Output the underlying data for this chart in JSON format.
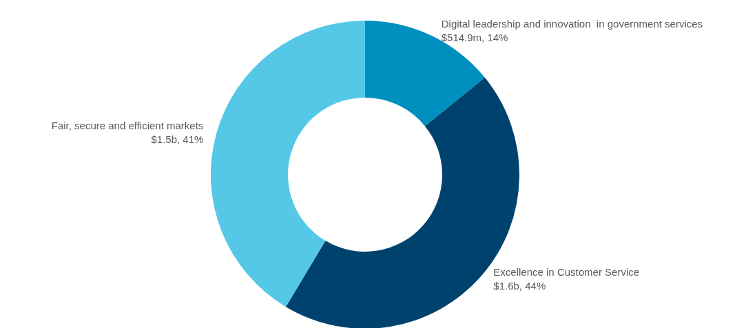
{
  "chart_data": {
    "type": "donut",
    "categories": [
      "Digital leadership and innovation  in government services",
      "Excellence in Customer Service",
      "Fair, secure and efficient markets"
    ],
    "values": [
      14,
      44,
      41
    ],
    "value_labels": [
      "$514.9m, 14%",
      "$1.6b, 44%",
      "$1.5b, 41%"
    ],
    "colors": [
      "#0090bf",
      "#00426e",
      "#55c8e8"
    ],
    "legend": false
  }
}
